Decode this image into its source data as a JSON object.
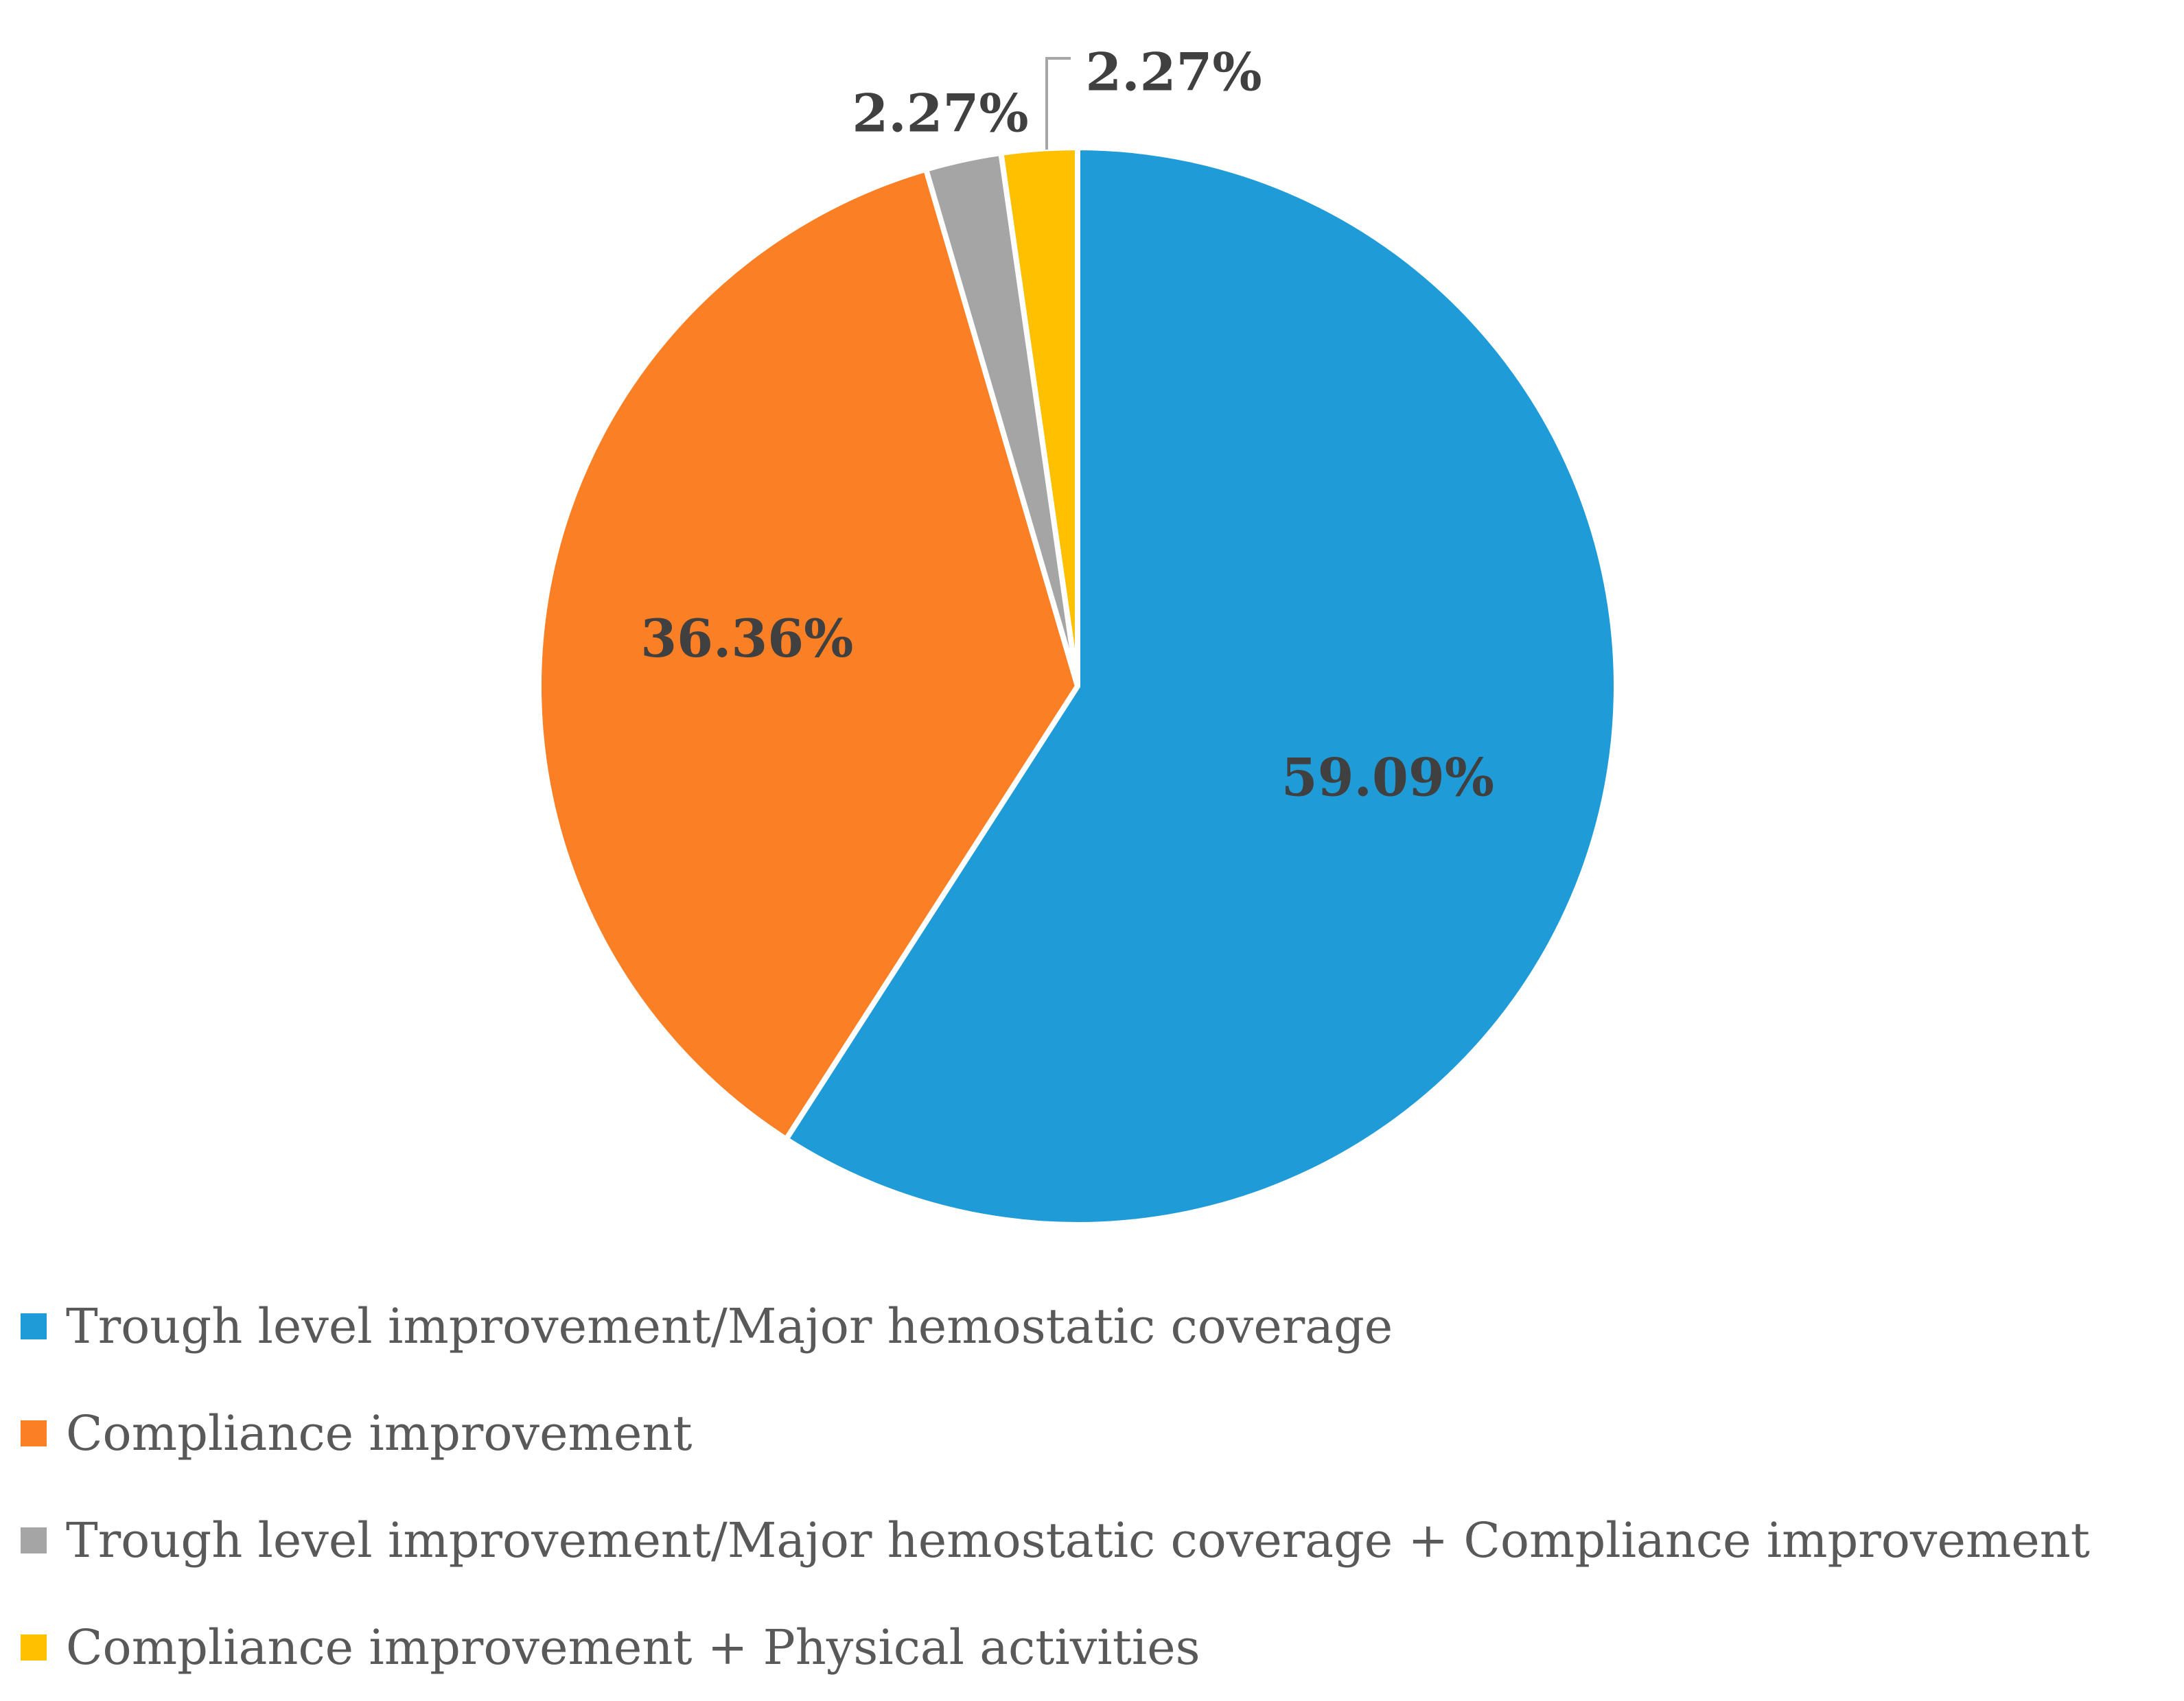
{
  "chart_data": {
    "type": "pie",
    "title": "",
    "start_angle_deg": 0,
    "direction": "clockwise",
    "slices": [
      {
        "name": "Trough level improvement/Major hemostatic coverage",
        "value": 59.09,
        "label": "59.09%",
        "color": "#1F9CD8"
      },
      {
        "name": "Compliance improvement",
        "value": 36.36,
        "label": "36.36%",
        "color": "#FA7F25"
      },
      {
        "name": "Trough level improvement/Major hemostatic coverage + Compliance improvement",
        "value": 2.27,
        "label": "2.27%",
        "color": "#A5A5A5"
      },
      {
        "name": "Compliance improvement + Physical activities",
        "value": 2.27,
        "label": "2.27%",
        "color": "#FFC000"
      }
    ],
    "legend_position": "bottom"
  }
}
